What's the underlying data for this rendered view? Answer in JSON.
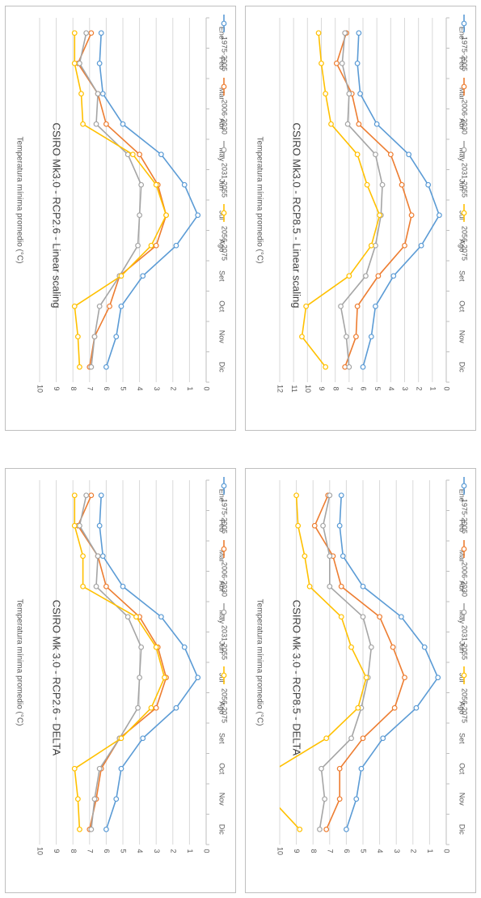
{
  "colors": {
    "1975-2005": "#5b9bd5",
    "2006-2030": "#ed7d31",
    "2031-2055": "#a5a5a5",
    "2056-2075": "#ffc000"
  },
  "chart_data": [
    {
      "type": "line",
      "title": "CSIRO Mk 3.0 - RCP2.6 - DELTA",
      "xlabel": "",
      "ylabel": "Temperatura mínima promedio (°C)",
      "ylim": [
        0,
        10
      ],
      "yticks": [
        "0",
        "1",
        "2",
        "3",
        "4",
        "5",
        "6",
        "7",
        "8",
        "9",
        "10"
      ],
      "categories": [
        "Ene",
        "Feb",
        "Mar",
        "Abr",
        "May",
        "Jun",
        "Jul",
        "Ago",
        "Set",
        "Oct",
        "Nov",
        "Dic"
      ],
      "legend_position": "top",
      "series": [
        {
          "name": "1975-2005",
          "values": [
            6.3,
            6.4,
            6.2,
            5.0,
            2.7,
            1.3,
            0.5,
            1.8,
            3.8,
            5.1,
            5.4,
            6.0
          ]
        },
        {
          "name": "2006-2030",
          "values": [
            6.9,
            7.7,
            6.5,
            6.0,
            4.0,
            2.9,
            2.4,
            3.0,
            5.2,
            6.3,
            6.6,
            7.0
          ]
        },
        {
          "name": "2031-2055",
          "values": [
            7.2,
            7.6,
            6.5,
            6.6,
            4.7,
            3.9,
            4.0,
            4.1,
            5.2,
            6.4,
            6.7,
            6.9
          ]
        },
        {
          "name": "2056-2075",
          "values": [
            7.9,
            7.9,
            7.4,
            7.4,
            4.2,
            3.0,
            2.5,
            3.3,
            5.1,
            7.9,
            7.7,
            7.6
          ]
        }
      ]
    },
    {
      "type": "line",
      "title": "CSIRO Mk 3.0 - RCP8.5 - DELTA",
      "xlabel": "",
      "ylabel": "Temperatura mínima promedio (°C)",
      "ylim": [
        0,
        10
      ],
      "yticks": [
        "0",
        "1",
        "2",
        "3",
        "4",
        "5",
        "6",
        "7",
        "8",
        "9",
        "10"
      ],
      "categories": [
        "Ene",
        "Feb",
        "Mar",
        "Abr",
        "May",
        "Jun",
        "Jul",
        "Ago",
        "Set",
        "Oct",
        "Nov",
        "Dic"
      ],
      "legend_position": "top",
      "series": [
        {
          "name": "1975-2005",
          "values": [
            6.3,
            6.4,
            6.2,
            5.0,
            2.7,
            1.3,
            0.5,
            1.8,
            3.8,
            5.1,
            5.4,
            6.0
          ]
        },
        {
          "name": "2006-2030",
          "values": [
            7.1,
            7.9,
            6.8,
            6.3,
            4.0,
            3.2,
            2.5,
            3.1,
            5.0,
            6.4,
            6.4,
            7.2
          ]
        },
        {
          "name": "2031-2055",
          "values": [
            7.0,
            7.4,
            7.0,
            7.0,
            5.0,
            4.5,
            4.7,
            5.1,
            5.7,
            7.5,
            7.3,
            7.6
          ]
        },
        {
          "name": "2056-2075",
          "values": [
            9.0,
            8.9,
            8.5,
            8.2,
            6.3,
            5.7,
            4.8,
            5.3,
            7.2,
            10.2,
            10.5,
            8.8
          ]
        }
      ]
    },
    {
      "type": "line",
      "title": "CSIRO Mk3.0 - RCP2.6 - Linear scaling",
      "xlabel": "",
      "ylabel": "Temperatura mínima promedio (°C)",
      "ylim": [
        0,
        10
      ],
      "yticks": [
        "0",
        "1",
        "2",
        "3",
        "4",
        "5",
        "6",
        "7",
        "8",
        "9",
        "10"
      ],
      "categories": [
        "Ene",
        "Feb",
        "Mar",
        "Abr",
        "May",
        "Jun",
        "Jul",
        "Ago",
        "Set",
        "Oct",
        "Nov",
        "Dic"
      ],
      "legend_position": "top",
      "series": [
        {
          "name": "1975-2005",
          "values": [
            6.3,
            6.4,
            6.2,
            5.0,
            2.7,
            1.3,
            0.5,
            1.8,
            3.8,
            5.1,
            5.4,
            6.0
          ]
        },
        {
          "name": "2006-2030",
          "values": [
            6.9,
            7.7,
            6.5,
            6.0,
            4.0,
            2.9,
            2.4,
            3.0,
            5.2,
            5.8,
            6.7,
            7.0
          ]
        },
        {
          "name": "2031-2055",
          "values": [
            7.2,
            7.6,
            6.5,
            6.6,
            4.7,
            3.9,
            4.0,
            4.1,
            5.2,
            6.4,
            6.7,
            6.9
          ]
        },
        {
          "name": "2056-2075",
          "values": [
            7.9,
            7.9,
            7.5,
            7.4,
            4.4,
            3.0,
            2.4,
            3.3,
            5.1,
            7.9,
            7.7,
            7.6
          ]
        }
      ]
    },
    {
      "type": "line",
      "title": "CSIRO Mk3.0 - RCP8.5 - Linear scaling",
      "xlabel": "",
      "ylabel": "Temperatura mínima promedio (°C)",
      "ylim": [
        0,
        12
      ],
      "yticks": [
        "0",
        "1",
        "2",
        "3",
        "4",
        "5",
        "6",
        "7",
        "8",
        "9",
        "10",
        "11",
        "12"
      ],
      "categories": [
        "Ene",
        "Feb",
        "Mar",
        "Abr",
        "May",
        "Jun",
        "Jul",
        "Ago",
        "Set",
        "Oct",
        "Nov",
        "Dic"
      ],
      "legend_position": "top",
      "series": [
        {
          "name": "1975-2005",
          "values": [
            6.3,
            6.4,
            6.2,
            5.0,
            2.7,
            1.3,
            0.5,
            1.8,
            3.8,
            5.1,
            5.4,
            6.0
          ]
        },
        {
          "name": "2006-2030",
          "values": [
            7.2,
            7.9,
            6.8,
            6.3,
            4.0,
            3.2,
            2.5,
            3.0,
            4.9,
            6.4,
            6.5,
            7.3
          ]
        },
        {
          "name": "2031-2055",
          "values": [
            7.3,
            7.5,
            7.0,
            7.1,
            5.1,
            4.6,
            4.7,
            5.1,
            5.8,
            7.6,
            7.2,
            7.0
          ]
        },
        {
          "name": "2056-2075",
          "values": [
            9.2,
            9.0,
            8.7,
            8.3,
            6.4,
            5.7,
            4.8,
            5.4,
            7.0,
            10.1,
            10.4,
            8.7
          ]
        }
      ]
    }
  ]
}
